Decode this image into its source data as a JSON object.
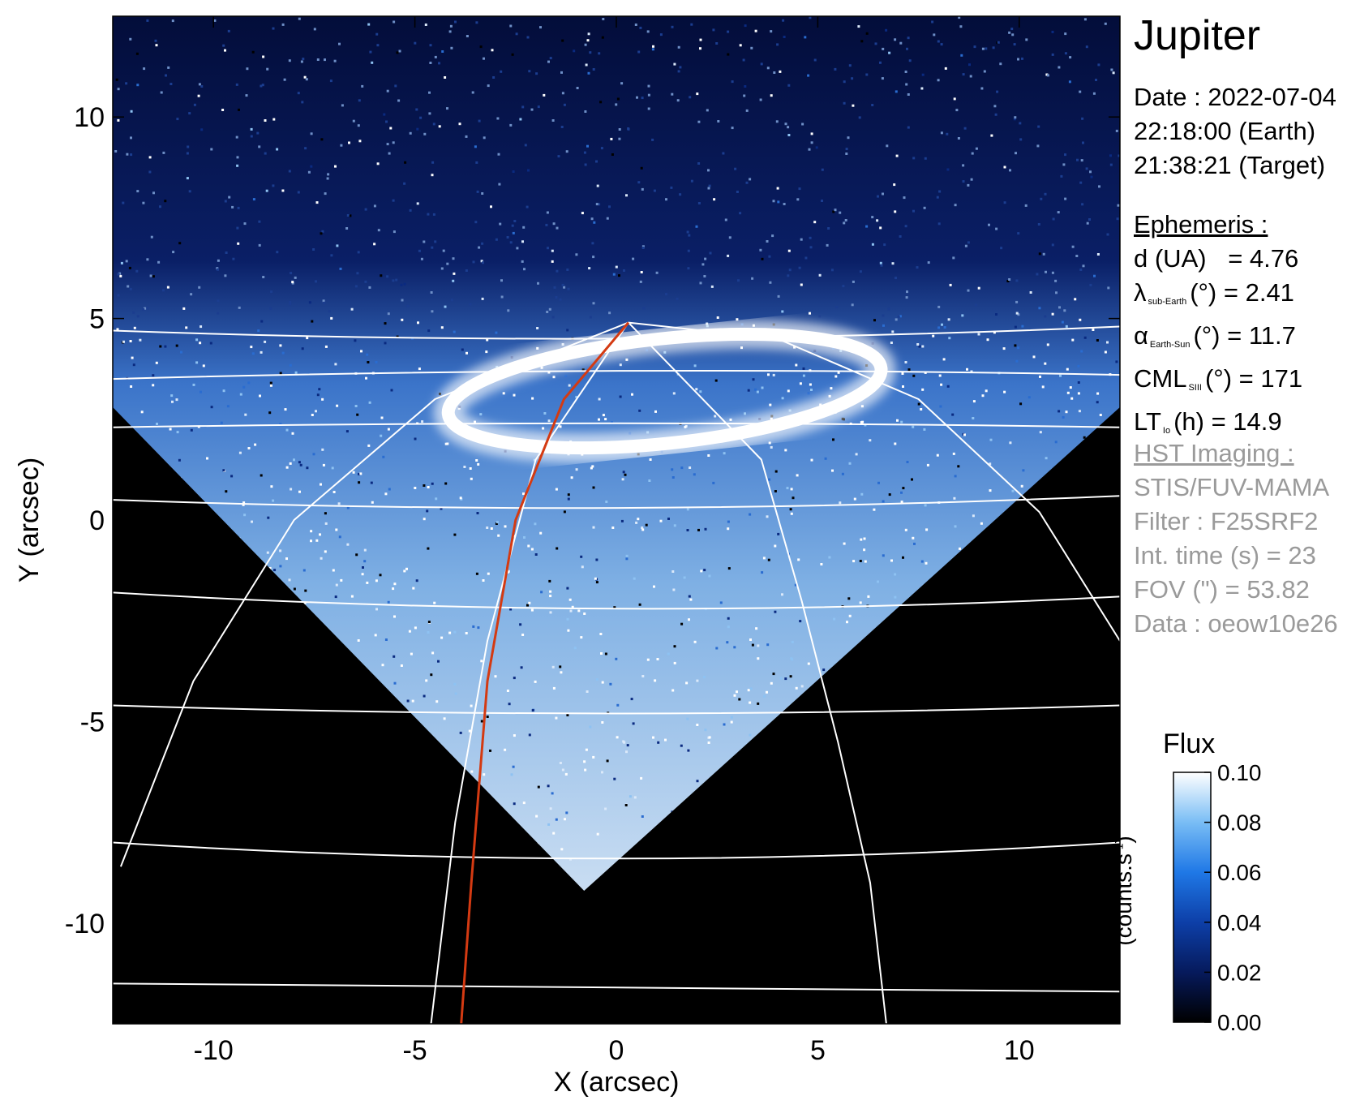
{
  "title": "Jupiter",
  "date_block": {
    "date": "Date : 2022-07-04",
    "earth_time": "22:18:00 (Earth)",
    "target_time": "21:38:21 (Target)"
  },
  "ephemeris": {
    "header": "Ephemeris :",
    "d": {
      "label": "d (UA)",
      "value": "= 4.76"
    },
    "lat": {
      "symbol": "λ",
      "sub": "sub-Earth",
      "unit": "(°)",
      "value": "= 2.41"
    },
    "alpha": {
      "symbol": "α",
      "sub": "Earth-Sun",
      "unit": "(°)",
      "value": "= 11.7"
    },
    "cml": {
      "symbol": "CML",
      "sub": "SIII",
      "unit": "(°)",
      "value": "= 171"
    },
    "lt": {
      "symbol": "LT",
      "sub": "Io",
      "unit": "(h)",
      "value": "= 14.9"
    }
  },
  "hst": {
    "header": "HST Imaging :",
    "instrument": "STIS/FUV-MAMA",
    "filter": "Filter : F25SRF2",
    "int_time": "Int. time (s) = 23",
    "fov": "FOV (\") = 53.82",
    "data": "Data : oeow10e26"
  },
  "colorbar": {
    "title": "Flux",
    "units_main": "(counts.s",
    "units_sup": "-1",
    "units_close": ")",
    "ticks": [
      "0.10",
      "0.08",
      "0.06",
      "0.04",
      "0.02",
      "0.00"
    ],
    "tick_values": [
      0.1,
      0.08,
      0.06,
      0.04,
      0.02,
      0.0
    ],
    "range": [
      0.0,
      0.1
    ],
    "colors": [
      "#000000",
      "#061a5c",
      "#0d3fa8",
      "#1f78e6",
      "#79bdf5",
      "#ffffff"
    ]
  },
  "chart_data": {
    "type": "heatmap",
    "xlabel": "X (arcsec)",
    "ylabel": "Y (arcsec)",
    "xlim": [
      -12.5,
      12.5
    ],
    "ylim": [
      -12.5,
      12.5
    ],
    "xticks": [
      -10,
      -5,
      0,
      5,
      10
    ],
    "yticks": [
      -10,
      -5,
      0,
      5,
      10
    ],
    "xtick_labels": [
      "-10",
      "-5",
      "0",
      "5",
      "10"
    ],
    "ytick_labels": [
      "-10",
      "-5",
      "0",
      "5",
      "10"
    ],
    "field_of_view": {
      "vertices": [
        [
          -12.5,
          12.5
        ],
        [
          12.5,
          12.5
        ],
        [
          12.5,
          2.8
        ],
        [
          -0.8,
          -9.2
        ],
        [
          -12.5,
          2.8
        ]
      ]
    },
    "latitude_lines": [
      {
        "y_left": -11.5,
        "y_mid": -11.6,
        "y_right": -11.7
      },
      {
        "y_left": -8.0,
        "y_mid": -8.4,
        "y_right": -8.0
      },
      {
        "y_left": -4.6,
        "y_mid": -4.8,
        "y_right": -4.6
      },
      {
        "y_left": -1.8,
        "y_mid": -2.2,
        "y_right": -1.9
      },
      {
        "y_left": 0.5,
        "y_mid": 0.3,
        "y_right": 0.6
      },
      {
        "y_left": 2.3,
        "y_mid": 2.4,
        "y_right": 2.3
      },
      {
        "y_left": 3.5,
        "y_mid": 3.7,
        "y_right": 3.6
      },
      {
        "y_left": 4.7,
        "y_mid": 4.5,
        "y_right": 4.8
      }
    ],
    "meridians": [
      [
        [
          -12.3,
          -8.6
        ],
        [
          -10.5,
          -4.0
        ],
        [
          -8.0,
          0.0
        ],
        [
          -4.5,
          3.0
        ],
        [
          0.3,
          4.9
        ]
      ],
      [
        [
          -4.6,
          -12.5
        ],
        [
          -4.0,
          -7.5
        ],
        [
          -3.2,
          -3.0
        ],
        [
          -2.0,
          1.5
        ],
        [
          0.3,
          4.9
        ]
      ],
      [
        [
          6.7,
          -12.5
        ],
        [
          6.3,
          -9.0
        ],
        [
          5.5,
          -5.5
        ],
        [
          4.6,
          -2.0
        ],
        [
          3.6,
          1.5
        ],
        [
          0.3,
          4.9
        ]
      ],
      [
        [
          12.5,
          -3.0
        ],
        [
          10.5,
          0.2
        ],
        [
          7.5,
          3.0
        ],
        [
          4.0,
          4.5
        ],
        [
          0.3,
          4.9
        ]
      ]
    ],
    "red_meridian": [
      [
        -3.85,
        -12.5
      ],
      [
        -3.6,
        -9.0
      ],
      [
        -3.2,
        -4.0
      ],
      [
        -2.5,
        0.0
      ],
      [
        -1.3,
        3.0
      ],
      [
        0.3,
        4.9
      ]
    ],
    "auroral_oval": {
      "cx": 1.2,
      "cy": 3.2,
      "rx": 5.4,
      "ry": 1.3,
      "rotation_deg": -6
    }
  }
}
